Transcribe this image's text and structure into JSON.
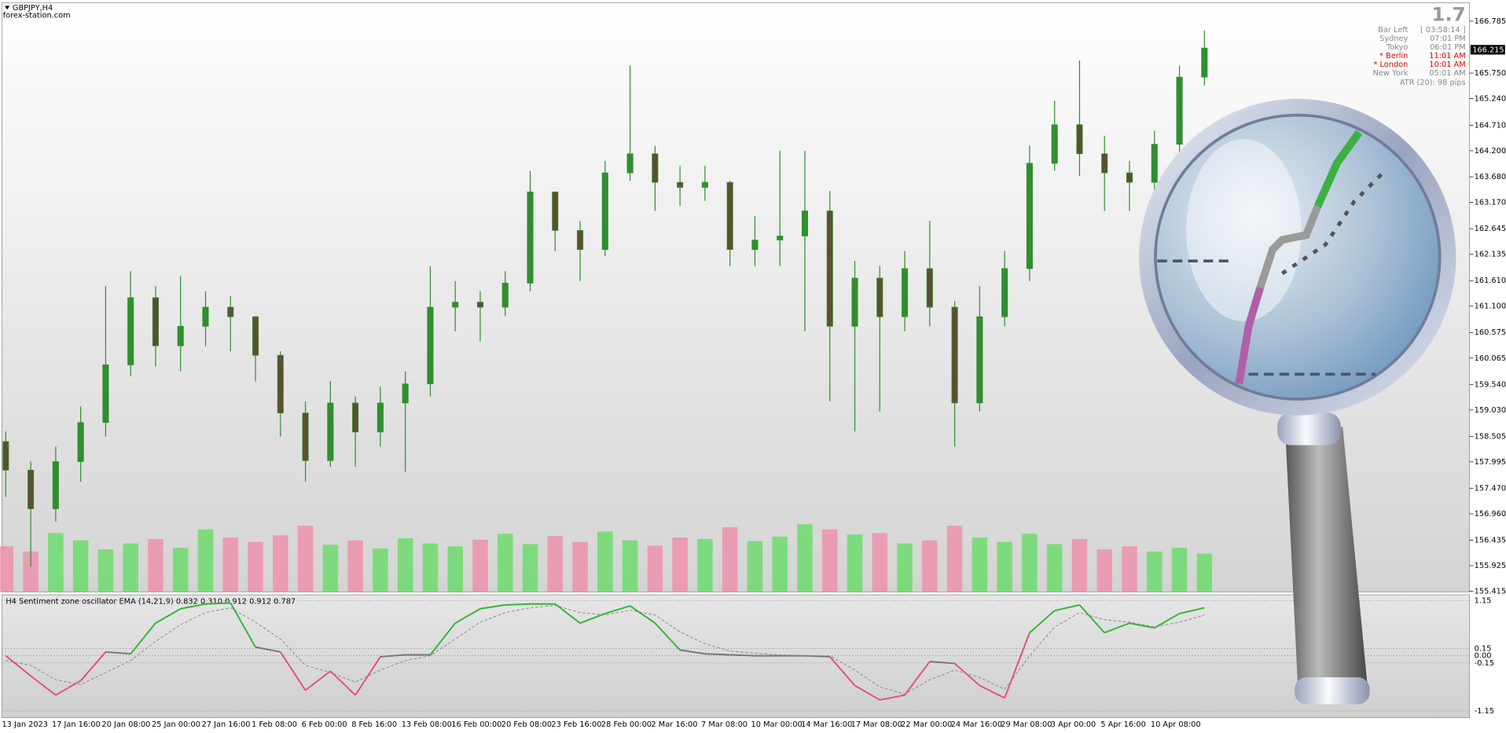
{
  "header": {
    "symbol": "GBPJPY,H4",
    "site": "forex-station.com"
  },
  "info_panel": {
    "spread": "1.7",
    "rows": [
      [
        "Bar Left",
        "[ 03:58:14 ]"
      ],
      [
        "Sydney",
        "07:01 PM"
      ],
      [
        "Tokyo",
        "06:01 PM"
      ],
      [
        "* Berlin",
        "11:01 AM"
      ],
      [
        "* London",
        "10:01 AM"
      ],
      [
        "New York",
        "05:01 AM"
      ]
    ],
    "highlight_rows": [
      3,
      4
    ],
    "atr": "ATR (20): 98 pips"
  },
  "chart_data": [
    {
      "type": "candlestick",
      "current_price": 166.215,
      "up_color": "#2f8f2f",
      "down_color": "#5b5030",
      "categories": [
        "13 Jan 2023",
        null,
        "17 Jan 16:00",
        null,
        "20 Jan 08:00",
        null,
        "25 Jan 00:00",
        null,
        "27 Jan 16:00",
        null,
        "1 Feb 08:00",
        null,
        "6 Feb 00:00",
        null,
        "8 Feb 16:00",
        null,
        "13 Feb 08:00",
        null,
        "16 Feb 00:00",
        null,
        "20 Feb 08:00",
        null,
        "23 Feb 16:00",
        null,
        "28 Feb 00:00",
        null,
        "2 Mar 16:00",
        null,
        "7 Mar 08:00",
        null,
        "10 Mar 00:00",
        null,
        "14 Mar 16:00",
        null,
        "17 Mar 08:00",
        null,
        "22 Mar 00:00",
        null,
        "24 Mar 16:00",
        null,
        "29 Mar 08:00",
        null,
        "3 Apr 00:00",
        null,
        "5 Apr 16:00",
        null,
        "10 Apr 08:00",
        null,
        null
      ],
      "open": [
        158.4,
        157.83,
        157.06,
        158.0,
        158.78,
        159.93,
        161.27,
        160.31,
        160.7,
        161.08,
        160.89,
        160.12,
        158.97,
        158.02,
        159.17,
        158.59,
        159.17,
        159.55,
        161.08,
        161.18,
        161.08,
        161.56,
        163.38,
        162.61,
        162.23,
        163.76,
        164.14,
        163.57,
        163.47,
        163.57,
        162.23,
        162.42,
        162.5,
        163.0,
        160.7,
        161.66,
        160.89,
        161.85,
        161.08,
        159.17,
        160.89,
        161.85,
        163.95,
        164.72,
        164.14,
        163.76,
        163.57,
        164.33,
        165.67
      ],
      "high": [
        158.6,
        158.0,
        158.3,
        159.1,
        161.5,
        161.8,
        161.5,
        161.7,
        161.4,
        161.3,
        160.9,
        160.2,
        159.2,
        159.6,
        159.3,
        159.5,
        159.8,
        161.9,
        161.6,
        161.4,
        161.8,
        163.8,
        163.3,
        162.8,
        164.0,
        165.9,
        164.3,
        163.9,
        163.9,
        163.6,
        162.9,
        164.2,
        164.2,
        163.4,
        162.0,
        161.9,
        162.2,
        162.8,
        161.2,
        161.5,
        162.2,
        164.3,
        165.2,
        166.0,
        164.5,
        164.0,
        164.6,
        165.9,
        166.6
      ],
      "low": [
        157.3,
        155.9,
        156.8,
        157.6,
        158.5,
        159.7,
        159.9,
        159.8,
        160.3,
        160.2,
        159.6,
        158.5,
        157.6,
        157.9,
        157.9,
        158.3,
        157.8,
        159.3,
        160.6,
        160.4,
        160.9,
        161.4,
        162.2,
        161.6,
        162.1,
        163.6,
        163.0,
        163.1,
        163.2,
        161.9,
        161.9,
        161.9,
        160.6,
        159.2,
        158.6,
        159.0,
        160.6,
        160.7,
        158.3,
        159.0,
        160.7,
        161.6,
        163.8,
        163.7,
        163.0,
        163.0,
        163.4,
        164.1,
        165.5
      ],
      "close": [
        157.83,
        157.06,
        158.0,
        158.78,
        159.93,
        161.27,
        160.31,
        160.7,
        161.08,
        160.89,
        160.12,
        158.97,
        158.02,
        159.17,
        158.59,
        159.17,
        159.55,
        161.08,
        161.18,
        161.08,
        161.56,
        163.38,
        162.61,
        162.23,
        163.76,
        164.14,
        163.57,
        163.47,
        163.57,
        162.23,
        162.42,
        162.5,
        163.0,
        160.7,
        161.66,
        160.89,
        161.85,
        161.08,
        159.17,
        160.89,
        161.85,
        163.95,
        164.72,
        164.14,
        163.76,
        163.57,
        164.33,
        165.67,
        166.25
      ],
      "volume": {
        "values": [
          62,
          55,
          80,
          70,
          58,
          66,
          72,
          60,
          85,
          74,
          68,
          77,
          90,
          64,
          70,
          59,
          73,
          66,
          62,
          71,
          79,
          65,
          76,
          68,
          82,
          70,
          63,
          74,
          72,
          88,
          69,
          75,
          92,
          85,
          78,
          80,
          66,
          70,
          90,
          74,
          68,
          79,
          65,
          72,
          58,
          62,
          55,
          60,
          52
        ],
        "lim": [
          0,
          160
        ],
        "up_color": "#5fdc5f",
        "down_color": "#f08aa6"
      },
      "ylim": [
        155.4,
        167.15
      ],
      "yticks": [
        166.785,
        {
          "value": 165.75,
          "label": "165.750"
        },
        {
          "value": 165.24,
          "label": "165.240"
        },
        {
          "value": 164.71,
          "label": "164.710"
        },
        {
          "value": 164.2,
          "label": "164.200"
        },
        {
          "value": 163.68,
          "label": "163.680"
        },
        {
          "value": 163.17,
          "label": "163.170"
        },
        162.645,
        162.135,
        {
          "value": 161.61,
          "label": "161.610"
        },
        {
          "value": 161.1,
          "label": "161.100"
        },
        160.575,
        160.065,
        {
          "value": 159.54,
          "label": "159.540"
        },
        {
          "value": 159.03,
          "label": "159.030"
        },
        158.505,
        157.995,
        {
          "value": 157.47,
          "label": "157.470"
        },
        {
          "value": 156.96,
          "label": "156.960"
        },
        156.435,
        155.925,
        155.415
      ]
    },
    {
      "type": "oscillator",
      "title": "H4  Sentiment zone oscillator EMA (14,21,9) 0.832 0.310 0.912 0.912 0.787",
      "up_color": "#2fb82f",
      "down_color": "#e0507e",
      "neutral_color": "#777777",
      "series": [
        {
          "values": [
            0.0,
            -0.42,
            -0.82,
            -0.52,
            0.08,
            0.04,
            0.68,
            0.98,
            1.08,
            1.1,
            0.18,
            0.08,
            -0.72,
            -0.32,
            -0.82,
            -0.02,
            0.02,
            0.02,
            0.68,
            0.98,
            1.06,
            1.08,
            1.08,
            0.68,
            0.88,
            1.04,
            0.68,
            0.12,
            0.04,
            0.02,
            0.0,
            0.0,
            0.0,
            -0.02,
            -0.62,
            -0.92,
            -0.82,
            -0.12,
            -0.16,
            -0.62,
            -0.88,
            0.48,
            0.94,
            1.06,
            0.48,
            0.68,
            0.58,
            0.88,
            1.0
          ]
        },
        {
          "values": [
            -0.1,
            -0.2,
            -0.5,
            -0.6,
            -0.35,
            -0.1,
            0.3,
            0.65,
            0.9,
            1.0,
            0.7,
            0.35,
            -0.2,
            -0.35,
            -0.55,
            -0.3,
            -0.1,
            0.0,
            0.35,
            0.7,
            0.9,
            1.0,
            1.05,
            0.9,
            0.85,
            0.95,
            0.85,
            0.5,
            0.25,
            0.1,
            0.05,
            0.02,
            0.0,
            0.0,
            -0.3,
            -0.65,
            -0.8,
            -0.5,
            -0.3,
            -0.45,
            -0.7,
            0.0,
            0.6,
            0.9,
            0.75,
            0.7,
            0.6,
            0.7,
            0.85
          ],
          "color": "#888888",
          "dashed": true
        }
      ],
      "ylim": [
        -1.29,
        1.27
      ],
      "yticks": [
        1.15,
        0.15,
        {
          "value": 0,
          "label": "0.00"
        },
        -0.15,
        -1.15
      ]
    }
  ]
}
